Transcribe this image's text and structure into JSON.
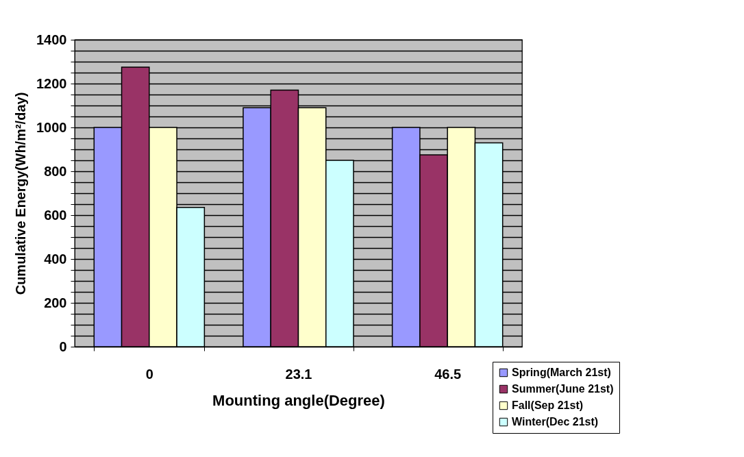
{
  "chart_data": {
    "type": "bar",
    "xlabel": "Mounting angle(Degree)",
    "ylabel": "Cumulative Energy(Wh/m²/day)",
    "categories": [
      "0",
      "23.1",
      "46.5"
    ],
    "series": [
      {
        "name": "Spring(March 21st)",
        "color": "#9999ff",
        "values": [
          1000,
          1090,
          1000
        ]
      },
      {
        "name": "Summer(June 21st)",
        "color": "#993366",
        "values": [
          1275,
          1170,
          875
        ]
      },
      {
        "name": "Fall(Sep 21st)",
        "color": "#ffffcc",
        "values": [
          1000,
          1090,
          1000
        ]
      },
      {
        "name": "Winter(Dec 21st)",
        "color": "#ccffff",
        "values": [
          635,
          850,
          930
        ]
      }
    ],
    "ylim": [
      0,
      1400
    ],
    "yticks": [
      0,
      {
        "value": 50,
        "label": null
      },
      {
        "value": 100,
        "label": null
      },
      {
        "value": 150,
        "label": null
      },
      200,
      {
        "value": 250,
        "label": null
      },
      {
        "value": 300,
        "label": null
      },
      {
        "value": 350,
        "label": null
      },
      400,
      {
        "value": 450,
        "label": null
      },
      {
        "value": 500,
        "label": null
      },
      {
        "value": 550,
        "label": null
      },
      600,
      {
        "value": 650,
        "label": null
      },
      {
        "value": 700,
        "label": null
      },
      {
        "value": 750,
        "label": null
      },
      800,
      {
        "value": 850,
        "label": null
      },
      {
        "value": 900,
        "label": null
      },
      {
        "value": 950,
        "label": null
      },
      1000,
      {
        "value": 1050,
        "label": null
      },
      {
        "value": 1100,
        "label": null
      },
      {
        "value": 1150,
        "label": null
      },
      1200,
      {
        "value": 1250,
        "label": null
      },
      {
        "value": 1300,
        "label": null
      },
      {
        "value": 1350,
        "label": null
      },
      1400
    ],
    "grid": "y",
    "legend": "bottom right"
  }
}
